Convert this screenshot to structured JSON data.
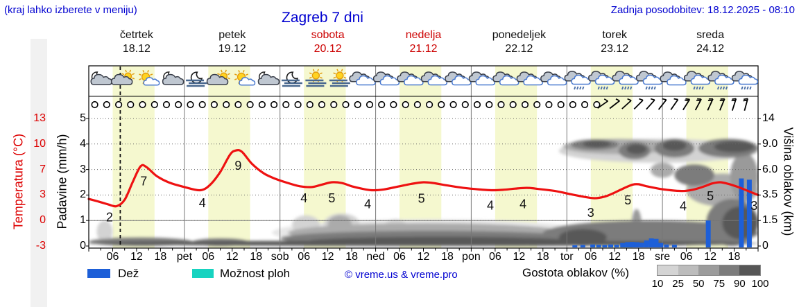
{
  "header": {
    "hint": "(kraj lahko izberete v meniju)",
    "title": "Zagreb 7 dni",
    "updated": "Zadnja posodobitev: 18.12.2025 - 08:10"
  },
  "days": [
    {
      "name": "četrtek",
      "date": "18.12",
      "weekend": false
    },
    {
      "name": "petek",
      "date": "19.12",
      "weekend": false
    },
    {
      "name": "sobota",
      "date": "20.12",
      "weekend": true
    },
    {
      "name": "nedelja",
      "date": "21.12",
      "weekend": true
    },
    {
      "name": "ponedeljek",
      "date": "22.12",
      "weekend": false
    },
    {
      "name": "torek",
      "date": "23.12",
      "weekend": false
    },
    {
      "name": "sreda",
      "date": "24.12",
      "weekend": false
    }
  ],
  "axes": {
    "left_temp": {
      "label": "Temperatura (°C)",
      "ticks": [
        "13",
        "10",
        "7",
        "3",
        "0",
        "-3"
      ]
    },
    "left_precip": {
      "label": "Padavine (mm/h)",
      "ticks": [
        "5",
        "4",
        "3",
        "2",
        "1",
        "0"
      ]
    },
    "right": {
      "label": "Višina oblakov (km)",
      "ticks": [
        "14",
        "9.0",
        "6.0",
        "3.5",
        "1.5",
        "0"
      ]
    },
    "x_hours": [
      "06",
      "12",
      "18"
    ],
    "x_daynames": [
      "pet",
      "sob",
      "ned",
      "pon",
      "tor",
      "sre"
    ]
  },
  "legend": {
    "rain": "Dež",
    "showers": "Možnost ploh",
    "copyright": "© vreme.us & vreme.pro",
    "cloud_density": "Gostota oblakov (%)",
    "cloud_scale": [
      "10",
      "25",
      "50",
      "75",
      "90",
      "100"
    ]
  },
  "colors": {
    "accent_blue": "#0000d0",
    "temp_red": "#ee1111",
    "tick_red": "#dd0000",
    "rain_blue": "#1d5fd8",
    "showers_teal": "#17d3c0",
    "day_band": "#f5f8cf",
    "red_day": "#cc0000",
    "black_day": "#111111"
  },
  "chart_data": {
    "type": "meteogram",
    "title": "Zagreb 7 dni",
    "x_unit": "hours from Thu 18.12 00:00",
    "x_range": [
      0,
      168
    ],
    "temp_axis_ticks_c": [
      13,
      10,
      7,
      3,
      0,
      -3
    ],
    "precip_axis_ticks_mmh": [
      5,
      4,
      3,
      2,
      1,
      0
    ],
    "cloud_axis_ticks_km": [
      14,
      9.0,
      6.0,
      3.5,
      1.5,
      0
    ],
    "day_band_hours": [
      6,
      16.5
    ],
    "now_line_h": 7.9,
    "temperature_series": [
      [
        0,
        2.9
      ],
      [
        3,
        2.5
      ],
      [
        5,
        2.2
      ],
      [
        7,
        2.0
      ],
      [
        9,
        2.8
      ],
      [
        11,
        5.0
      ],
      [
        13,
        7.0
      ],
      [
        14.5,
        6.9
      ],
      [
        17,
        5.8
      ],
      [
        20,
        5.0
      ],
      [
        24,
        4.4
      ],
      [
        28,
        4.0
      ],
      [
        30.5,
        4.7
      ],
      [
        33,
        6.3
      ],
      [
        35.5,
        8.5
      ],
      [
        37,
        9.0
      ],
      [
        38.5,
        8.8
      ],
      [
        41,
        7.3
      ],
      [
        44,
        6.1
      ],
      [
        47,
        5.4
      ],
      [
        50,
        4.9
      ],
      [
        53,
        4.5
      ],
      [
        56,
        4.4
      ],
      [
        58.5,
        4.7
      ],
      [
        61,
        5.0
      ],
      [
        63.5,
        4.9
      ],
      [
        66,
        4.5
      ],
      [
        68.5,
        4.2
      ],
      [
        71,
        4.0
      ],
      [
        74,
        4.1
      ],
      [
        78,
        4.5
      ],
      [
        81,
        4.8
      ],
      [
        84,
        5.0
      ],
      [
        86.5,
        4.9
      ],
      [
        90,
        4.6
      ],
      [
        94,
        4.3
      ],
      [
        98,
        4.1
      ],
      [
        101,
        4.0
      ],
      [
        104,
        4.05
      ],
      [
        107,
        4.2
      ],
      [
        110,
        4.3
      ],
      [
        113,
        4.15
      ],
      [
        117,
        3.9
      ],
      [
        121,
        3.5
      ],
      [
        124,
        3.2
      ],
      [
        127,
        3.0
      ],
      [
        129.5,
        3.2
      ],
      [
        132,
        3.7
      ],
      [
        134.5,
        4.3
      ],
      [
        136.5,
        4.7
      ],
      [
        138,
        4.75
      ],
      [
        140,
        4.5
      ],
      [
        143,
        4.2
      ],
      [
        146,
        4.0
      ],
      [
        149,
        3.9
      ],
      [
        151.5,
        4.05
      ],
      [
        154,
        4.4
      ],
      [
        156.5,
        4.85
      ],
      [
        158.5,
        5.0
      ],
      [
        160.5,
        4.8
      ],
      [
        163,
        4.4
      ],
      [
        165.5,
        3.9
      ],
      [
        168,
        3.4
      ]
    ],
    "temperature_labels": [
      [
        5.2,
        "2",
        16
      ],
      [
        13.8,
        "7",
        19
      ],
      [
        28.5,
        "4",
        18
      ],
      [
        37.5,
        "9",
        19
      ],
      [
        54,
        "4",
        15
      ],
      [
        61,
        "5",
        21
      ],
      [
        70,
        "4",
        19
      ],
      [
        83.5,
        "5",
        21
      ],
      [
        100.8,
        "4",
        20
      ],
      [
        109,
        "4",
        21
      ],
      [
        126,
        "3",
        20
      ],
      [
        135.3,
        "5",
        18
      ],
      [
        149.2,
        "4",
        20
      ],
      [
        156,
        "5",
        15
      ],
      [
        167,
        "3",
        16
      ]
    ],
    "precipitation_bars_mmh": [
      [
        122,
        0.03
      ],
      [
        124,
        0.04
      ],
      [
        126.5,
        0.06
      ],
      [
        128,
        0.05
      ],
      [
        129.5,
        0.04
      ],
      [
        131,
        0.06
      ],
      [
        132.5,
        0.05
      ],
      [
        134,
        0.12
      ],
      [
        135.2,
        0.15
      ],
      [
        136.4,
        0.16
      ],
      [
        137.6,
        0.15
      ],
      [
        138.8,
        0.13
      ],
      [
        140,
        0.22
      ],
      [
        141.2,
        0.3
      ],
      [
        142.4,
        0.28
      ],
      [
        143.6,
        0.12
      ],
      [
        145,
        0.06
      ],
      [
        147,
        0.05
      ],
      [
        155.5,
        1.0
      ],
      [
        163.8,
        2.65
      ],
      [
        165.8,
        2.6
      ]
    ],
    "cloud_blobs": [
      [
        46,
        126,
        0,
        1.6,
        10
      ],
      [
        2,
        6,
        0.2,
        1.5,
        25
      ],
      [
        51,
        58,
        0.7,
        1.9,
        25
      ],
      [
        59,
        68,
        0.7,
        2.05,
        25
      ],
      [
        74,
        80,
        0.6,
        1.6,
        25
      ],
      [
        93,
        100,
        0.5,
        1.3,
        25
      ],
      [
        118,
        168,
        6.8,
        10,
        25
      ],
      [
        50,
        120,
        0.2,
        1.35,
        50
      ],
      [
        60,
        66,
        0.8,
        1.9,
        50
      ],
      [
        119,
        147,
        7.8,
        10,
        50
      ],
      [
        141,
        147,
        5.2,
        6.8,
        50
      ],
      [
        150,
        168,
        2.6,
        5.6,
        50
      ],
      [
        136.2,
        138.8,
        0,
        2.4,
        60
      ],
      [
        161,
        168,
        3,
        8,
        60
      ],
      [
        0,
        26,
        0,
        0.5,
        75
      ],
      [
        26,
        40,
        0,
        0.45,
        75
      ],
      [
        48,
        124,
        0,
        0.9,
        75
      ],
      [
        114,
        168,
        0,
        1.5,
        75
      ],
      [
        121,
        133,
        8.3,
        9.9,
        75
      ],
      [
        133,
        141,
        7.2,
        9.4,
        75
      ],
      [
        142,
        152,
        7.4,
        10,
        75
      ],
      [
        147,
        157,
        4.4,
        6.6,
        75
      ],
      [
        153,
        168,
        7.4,
        10,
        75
      ],
      [
        155,
        168,
        0,
        3.2,
        75
      ],
      [
        0,
        168,
        0,
        0.32,
        90
      ],
      [
        55,
        122,
        0,
        0.55,
        90
      ],
      [
        118,
        130,
        0,
        1.0,
        90
      ],
      [
        124,
        131,
        8.6,
        9.7,
        90
      ],
      [
        135,
        140,
        7.8,
        9,
        90
      ],
      [
        144,
        150,
        8.2,
        9.7,
        90
      ],
      [
        157,
        167,
        8,
        9.6,
        90
      ],
      [
        159,
        168,
        0.4,
        2.6,
        90
      ]
    ],
    "weather_icons": [
      "moon-cloud",
      "sun-cloud",
      "sun-cloud2",
      "moon-cloud",
      "moon-fog",
      "sun-cloud",
      "sun-cloud2",
      "moon-cloud",
      "moon-fog",
      "sun-fog",
      "sun-fog",
      "clouds",
      "clouds",
      "clouds",
      "clouds",
      "clouds",
      "clouds",
      "clouds",
      "clouds",
      "clouds",
      "clouds-drizzle",
      "clouds-drizzle",
      "clouds-drizzle",
      "clouds-drizzle",
      "clouds",
      "clouds-drizzle",
      "clouds-drizzle",
      "clouds-drizzle"
    ],
    "wind_symbols": {
      "calm_circle_every_h": 3,
      "calm_from_h": 1.5,
      "calm_until_h": 127.5,
      "barbs": [
        [
          129,
          35,
          1
        ],
        [
          132,
          38,
          1
        ],
        [
          135,
          42,
          1
        ],
        [
          138,
          45,
          1
        ],
        [
          141,
          48,
          1
        ],
        [
          144,
          52,
          1
        ],
        [
          147,
          55,
          1
        ],
        [
          150,
          58,
          2
        ],
        [
          153,
          62,
          2
        ],
        [
          156,
          65,
          2
        ],
        [
          159,
          68,
          2
        ],
        [
          162,
          72,
          2
        ],
        [
          165,
          75,
          2
        ]
      ]
    }
  }
}
